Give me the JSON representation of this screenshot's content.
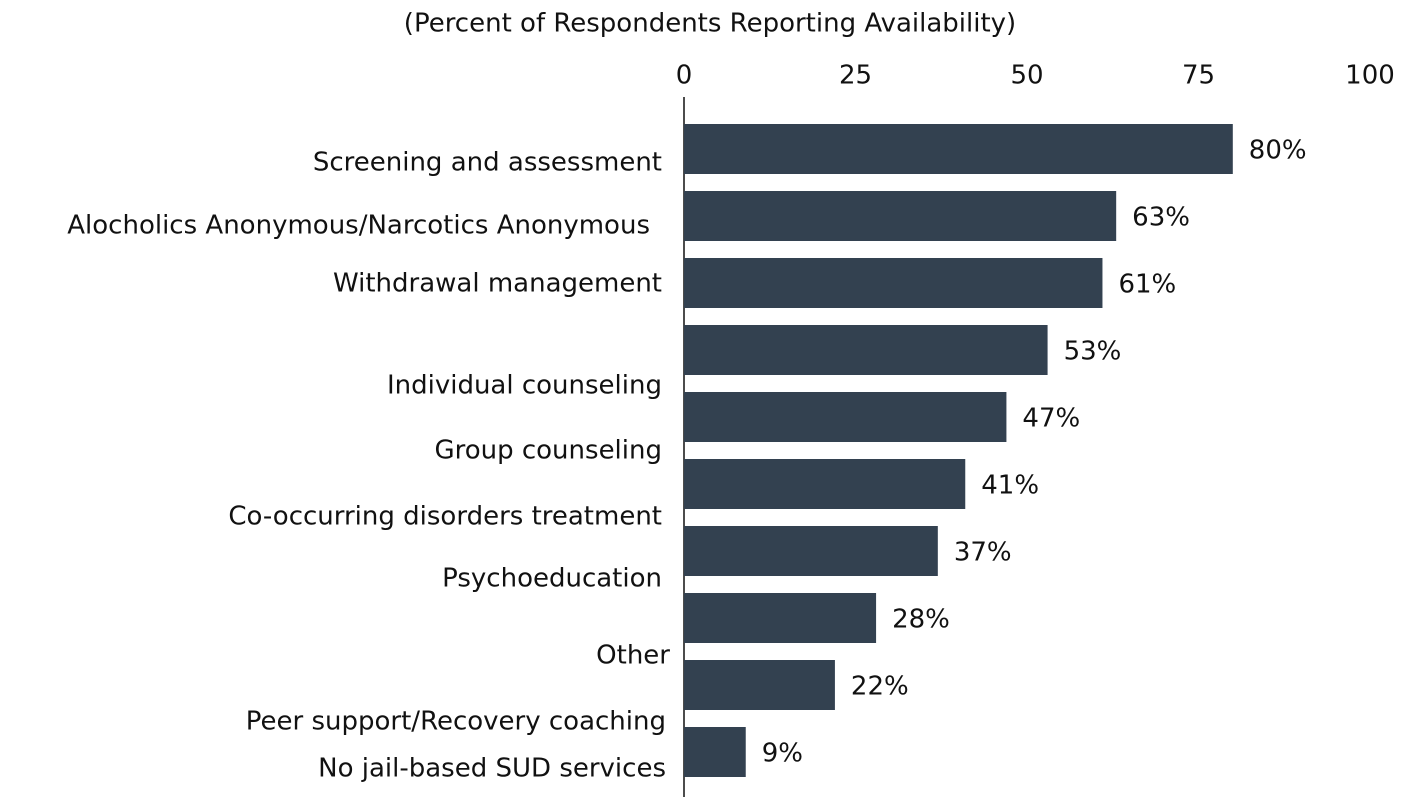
{
  "chart_data": {
    "type": "bar",
    "orientation": "horizontal",
    "title": "(Percent of Respondents Reporting Availability)",
    "categories": [
      "Screening and assessment",
      "Alocholics Anonymous/Narcotics Anonymous",
      "Withdrawal management",
      "Individual counseling",
      "Group counseling",
      "Co-occurring disorders treatment",
      "Psychoeducation",
      "Other",
      "Peer support/Recovery coaching",
      "No jail-based SUD services"
    ],
    "values": [
      80,
      63,
      61,
      53,
      47,
      41,
      37,
      28,
      22,
      9
    ],
    "value_labels": [
      "80%",
      "63%",
      "61%",
      "53%",
      "47%",
      "41%",
      "37%",
      "28%",
      "22%",
      "9%"
    ],
    "color": "#334150",
    "xlim": [
      0,
      100
    ],
    "xticks": [
      0,
      25,
      50,
      75,
      100
    ],
    "grid": false
  }
}
